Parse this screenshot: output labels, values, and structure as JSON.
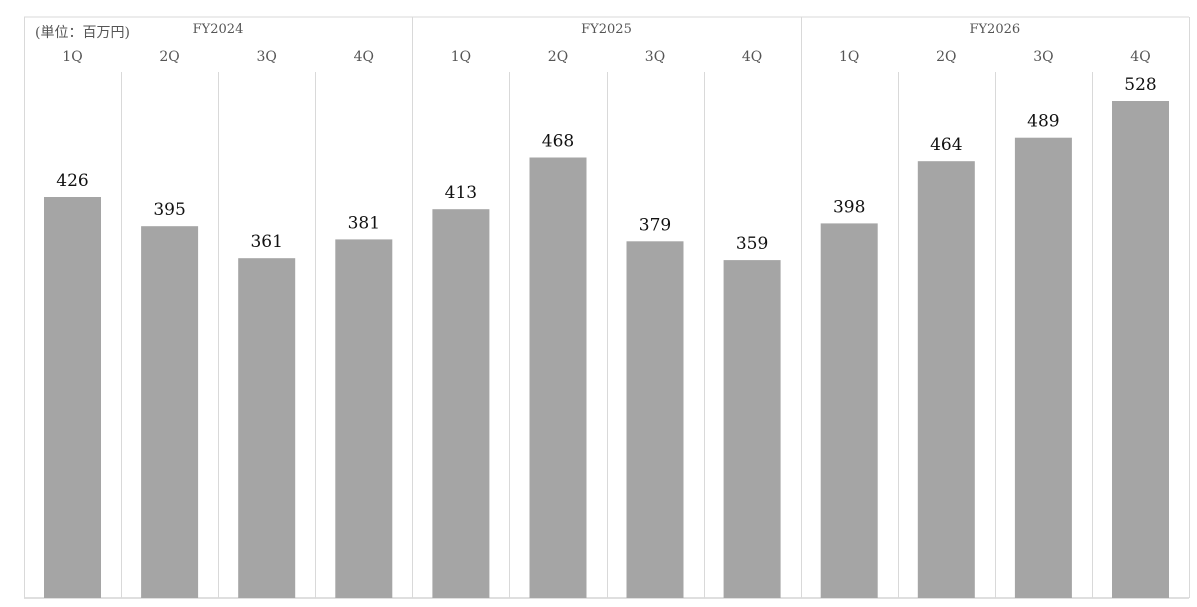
{
  "chart_data": {
    "type": "bar",
    "unit_label": "(単位：百万円)",
    "groups": [
      {
        "label": "FY2024",
        "quarters": [
          "1Q",
          "2Q",
          "3Q",
          "4Q"
        ]
      },
      {
        "label": "FY2025",
        "quarters": [
          "1Q",
          "2Q",
          "3Q",
          "4Q"
        ]
      },
      {
        "label": "FY2026",
        "quarters": [
          "1Q",
          "2Q",
          "3Q",
          "4Q"
        ]
      }
    ],
    "categories": [
      "FY2024 1Q",
      "FY2024 2Q",
      "FY2024 3Q",
      "FY2024 4Q",
      "FY2025 1Q",
      "FY2025 2Q",
      "FY2025 3Q",
      "FY2025 4Q",
      "FY2026 1Q",
      "FY2026 2Q",
      "FY2026 3Q",
      "FY2026 4Q"
    ],
    "values": [
      426,
      395,
      361,
      381,
      413,
      468,
      379,
      359,
      398,
      464,
      489,
      528
    ],
    "xlabel": "",
    "ylabel": "",
    "ylim": [
      0,
      528
    ],
    "grid": false,
    "legend": "none",
    "bar_color": "#a5a5a5",
    "separator_color": "#d9d9d9"
  }
}
